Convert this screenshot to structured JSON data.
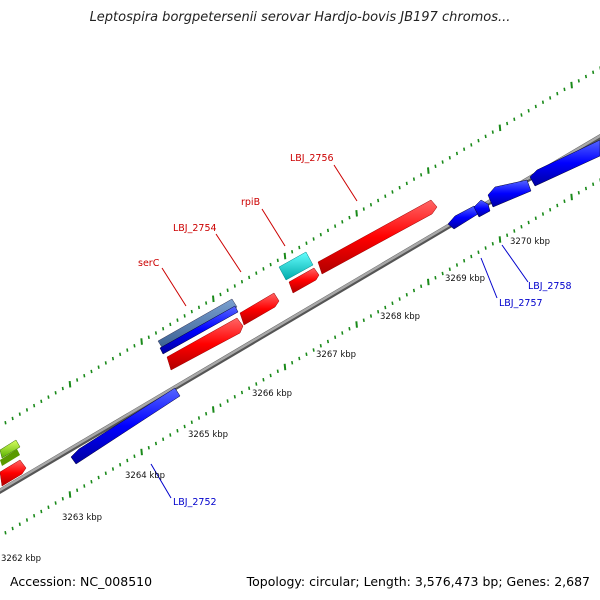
{
  "title": "Leptospira borgpetersenii serovar Hardjo-bovis JB197 chromos...",
  "footer": {
    "accession": "Accession: NC_008510",
    "summary": "Topology: circular; Length: 3,576,473 bp; Genes: 2,687"
  },
  "kbp_labels": [
    "3262 kbp",
    "3263 kbp",
    "3264 kbp",
    "3265 kbp",
    "3266 kbp",
    "3267 kbp",
    "3268 kbp",
    "3269 kbp",
    "3270 kbp"
  ],
  "gene_labels": [
    {
      "name": "LBJ_2756",
      "strand": "forward"
    },
    {
      "name": "rpiB",
      "strand": "forward"
    },
    {
      "name": "LBJ_2754",
      "strand": "forward"
    },
    {
      "name": "serC",
      "strand": "forward"
    },
    {
      "name": "LBJ_2758",
      "strand": "reverse"
    },
    {
      "name": "LBJ_2757",
      "strand": "reverse"
    },
    {
      "name": "LBJ_2752",
      "strand": "reverse"
    }
  ],
  "colors": {
    "forward_gene": "#ff0000",
    "reverse_gene": "#0000ff",
    "rna_gene": "#00cccc",
    "other_gene": "#4472c4",
    "backbone": "#808080",
    "tick": "#118811",
    "forward_label": "#cc0000",
    "reverse_label": "#0000cc"
  }
}
